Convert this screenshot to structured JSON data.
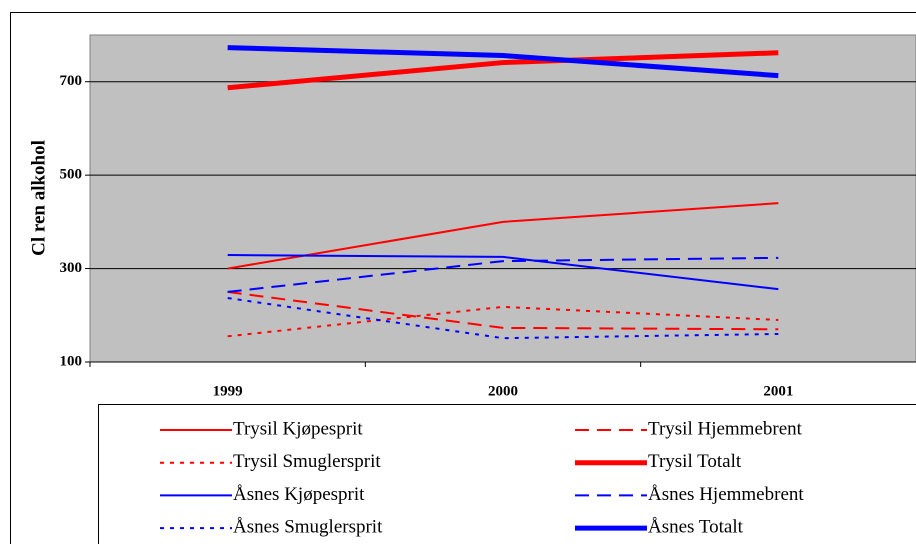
{
  "chart_data": {
    "type": "line",
    "ylabel": "Cl ren alkohol",
    "categories": [
      "1999",
      "2000",
      "2001"
    ],
    "ylim": [
      100,
      800
    ],
    "yticks": [
      100,
      300,
      500,
      700
    ],
    "grid": true,
    "series": [
      {
        "name": "Trysil Kjøpesprit",
        "color": "#ff0000",
        "dash": "solid",
        "width": 2,
        "values": [
          300,
          400,
          440
        ]
      },
      {
        "name": "Trysil Hjemmebrent",
        "color": "#ff0000",
        "dash": "dashed",
        "width": 2,
        "values": [
          250,
          173,
          170
        ]
      },
      {
        "name": "Trysil Smuglersprit",
        "color": "#ff0000",
        "dash": "dotted",
        "width": 2,
        "values": [
          155,
          218,
          190
        ]
      },
      {
        "name": "Trysil Totalt",
        "color": "#ff0000",
        "dash": "solid",
        "width": 5,
        "values": [
          687,
          741,
          762
        ]
      },
      {
        "name": "Åsnes Kjøpesprit",
        "color": "#0000ff",
        "dash": "solid",
        "width": 2,
        "values": [
          329,
          325,
          256
        ]
      },
      {
        "name": "Åsnes Hjemmebrent",
        "color": "#0000ff",
        "dash": "dashed",
        "width": 2,
        "values": [
          250,
          316,
          323
        ]
      },
      {
        "name": "Åsnes Smuglersprit",
        "color": "#0000ff",
        "dash": "dotted",
        "width": 2,
        "values": [
          237,
          151,
          160
        ]
      },
      {
        "name": "Åsnes Totalt",
        "color": "#0000ff",
        "dash": "solid",
        "width": 5,
        "values": [
          773,
          756,
          713
        ]
      }
    ]
  }
}
